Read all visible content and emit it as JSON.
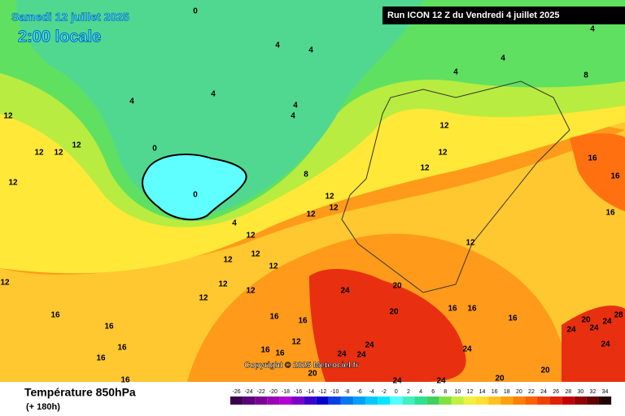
{
  "header": {
    "date": "Samedi 12 juillet 2025",
    "time": "2:00 locale",
    "run": "Run ICON 12 Z du Vendredi 4 juillet 2025"
  },
  "copyright": "Copyright © 2025 Meteociel.fr",
  "footer": {
    "title": "Température 850hPa",
    "lead": "(+ 180h)"
  },
  "scale": {
    "labels": [
      -26,
      -24,
      -22,
      -20,
      -18,
      -16,
      -14,
      -12,
      -10,
      -8,
      -6,
      -4,
      -2,
      0,
      2,
      4,
      6,
      8,
      10,
      12,
      14,
      16,
      18,
      20,
      22,
      24,
      26,
      28,
      30,
      32,
      34
    ],
    "colors": [
      "#3a0050",
      "#5a0078",
      "#7a0096",
      "#9a00b4",
      "#b400d2",
      "#7800c8",
      "#3c00c8",
      "#0000c8",
      "#0040e0",
      "#0078f0",
      "#00a0ff",
      "#00c8ff",
      "#00e6ff",
      "#50ffff",
      "#40f0c0",
      "#30e090",
      "#40d060",
      "#80e040",
      "#c0f040",
      "#f0f040",
      "#ffe030",
      "#ffc020",
      "#ffa010",
      "#ff8000",
      "#ff6000",
      "#f04000",
      "#e02000",
      "#c00000",
      "#900000",
      "#600000",
      "#200000"
    ]
  },
  "contours": [
    0,
    4,
    4,
    4,
    4,
    4,
    4,
    4,
    4,
    4,
    8,
    12,
    12,
    12,
    12,
    12,
    0,
    0,
    4,
    8,
    12,
    12,
    12,
    12,
    12,
    12,
    12,
    12,
    12,
    12,
    12,
    12,
    12,
    12,
    12,
    16,
    16,
    16,
    24,
    20,
    20,
    16,
    16,
    16,
    16,
    16,
    16,
    16,
    16,
    16,
    12,
    24,
    24,
    24,
    20,
    24,
    24,
    20,
    20,
    24,
    16,
    16,
    16,
    20,
    24,
    28,
    24,
    24,
    24
  ]
}
